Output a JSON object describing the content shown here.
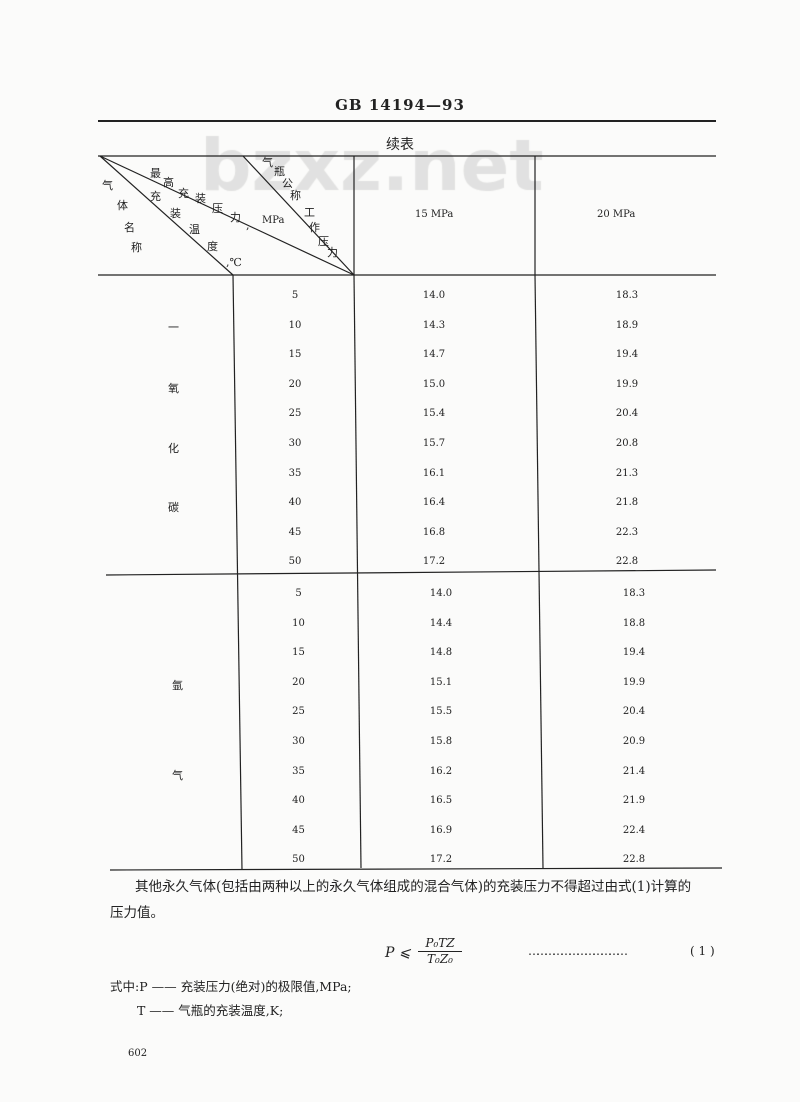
{
  "header": {
    "standard_code": "GB 14194—93"
  },
  "watermark": "bzxz.net",
  "table": {
    "caption": "续表",
    "diagonal_header": {
      "gas_name": [
        "气",
        "体",
        "名",
        "称"
      ],
      "fill_temperature": [
        "充",
        "装",
        "温",
        "度",
        ",℃"
      ],
      "max_fill_pressure": [
        "最",
        "高",
        "充",
        "装",
        "压",
        "力",
        ",",
        "MPa"
      ],
      "nominal_working_pressure": [
        "气",
        "瓶",
        "公",
        "称",
        "工",
        "作",
        "压",
        "力"
      ]
    },
    "columns": [
      "15 MPa",
      "20 MPa"
    ],
    "groups": [
      {
        "gas": [
          "一",
          "氧",
          "化",
          "碳"
        ],
        "rows": [
          [
            "5",
            "14.0",
            "18.3"
          ],
          [
            "10",
            "14.3",
            "18.9"
          ],
          [
            "15",
            "14.7",
            "19.4"
          ],
          [
            "20",
            "15.0",
            "19.9"
          ],
          [
            "25",
            "15.4",
            "20.4"
          ],
          [
            "30",
            "15.7",
            "20.8"
          ],
          [
            "35",
            "16.1",
            "21.3"
          ],
          [
            "40",
            "16.4",
            "21.8"
          ],
          [
            "45",
            "16.8",
            "22.3"
          ],
          [
            "50",
            "17.2",
            "22.8"
          ]
        ]
      },
      {
        "gas": [
          "氩",
          "气"
        ],
        "rows": [
          [
            "5",
            "14.0",
            "18.3"
          ],
          [
            "10",
            "14.4",
            "18.8"
          ],
          [
            "15",
            "14.8",
            "19.4"
          ],
          [
            "20",
            "15.1",
            "19.9"
          ],
          [
            "25",
            "15.5",
            "20.4"
          ],
          [
            "30",
            "15.8",
            "20.9"
          ],
          [
            "35",
            "16.2",
            "21.4"
          ],
          [
            "40",
            "16.5",
            "21.9"
          ],
          [
            "45",
            "16.9",
            "22.4"
          ],
          [
            "50",
            "17.2",
            "22.8"
          ]
        ]
      }
    ]
  },
  "body": {
    "paragraph_line1": "其他永久气体(包括由两种以上的永久气体组成的混合气体)的充装压力不得超过由式(1)计算的",
    "paragraph_line2": "压力值。",
    "formula_lhs": "P ⩽",
    "formula_num": "P₀TZ",
    "formula_den": "T₀Z₀",
    "formula_leader": "………………………………",
    "formula_number": "( 1 )",
    "where_line1": "式中:P —— 充装压力(绝对)的极限值,MPa;",
    "where_line2": "T —— 气瓶的充装温度,K;"
  },
  "footer": {
    "page_number": "602"
  }
}
